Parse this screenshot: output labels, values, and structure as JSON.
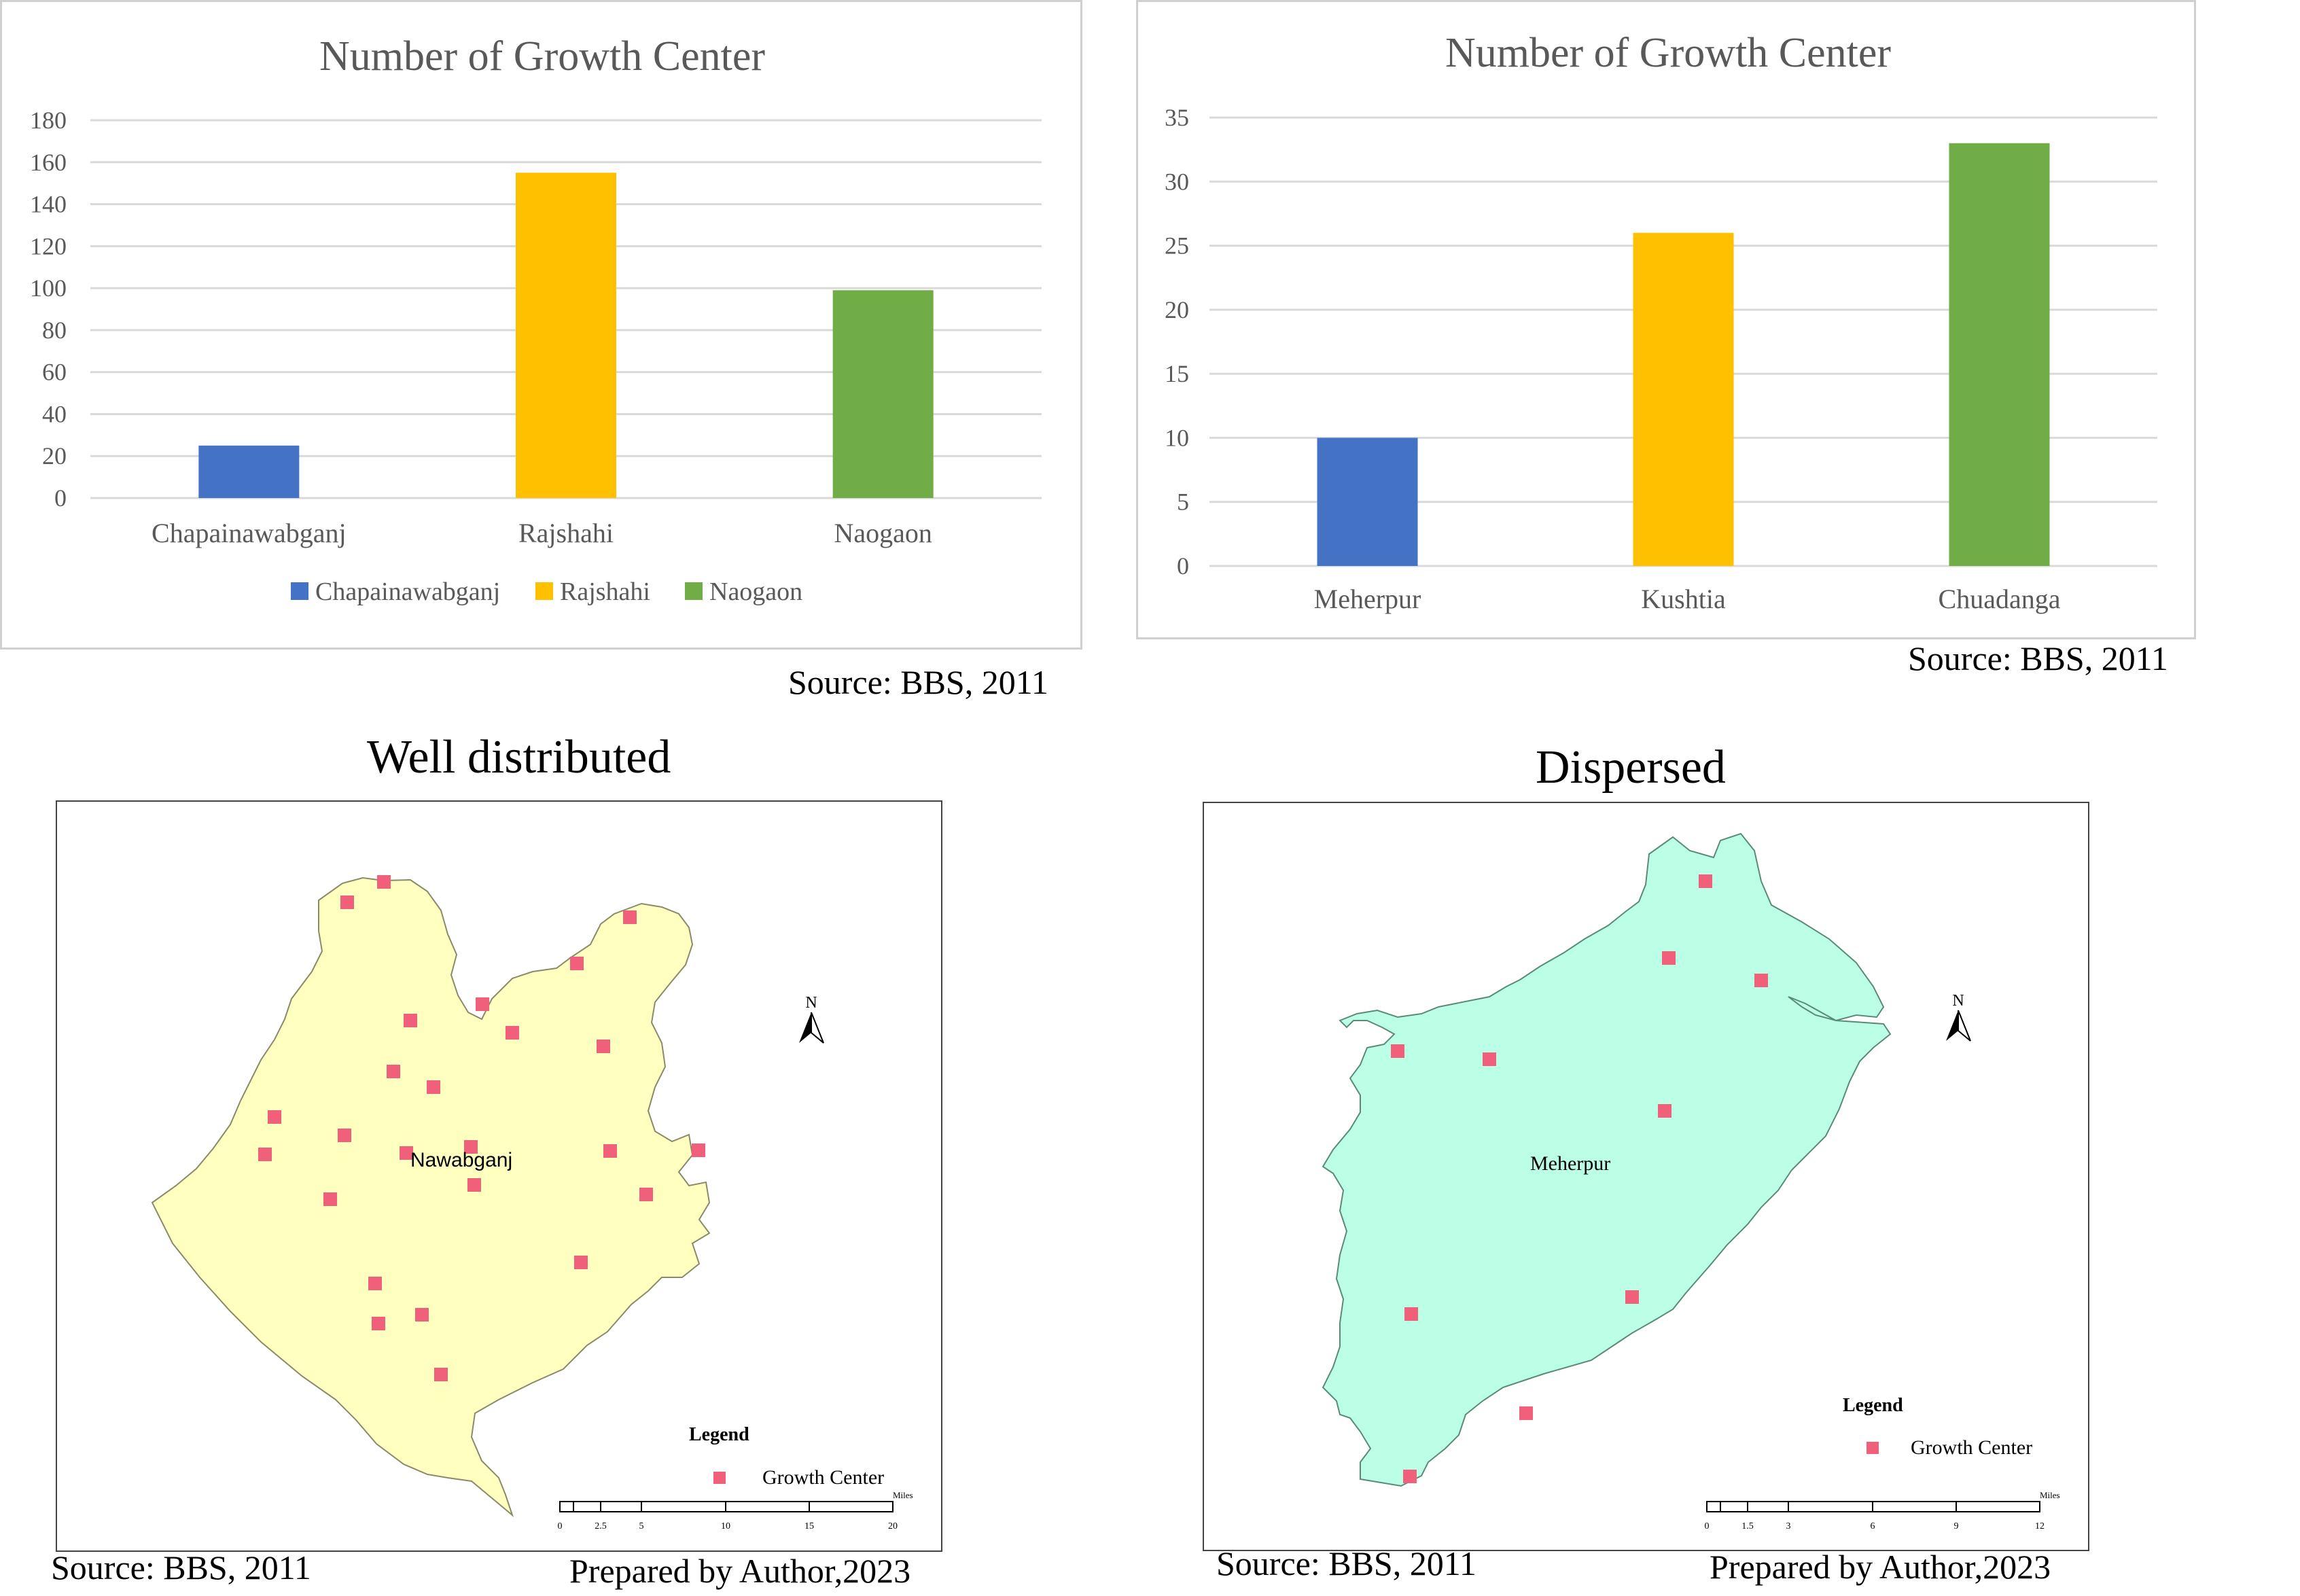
{
  "chart_data": [
    {
      "type": "bar",
      "title": "Number of Growth  Center",
      "categories": [
        "Chapainawabganj",
        "Rajshahi",
        "Naogaon"
      ],
      "values": [
        25,
        155,
        99
      ],
      "colors": [
        "#4472C4",
        "#FFC000",
        "#70AD47"
      ],
      "ylim": [
        0,
        180
      ],
      "yticks": [
        0,
        20,
        40,
        60,
        80,
        100,
        120,
        140,
        160,
        180
      ],
      "grid": true,
      "legend": [
        "Chapainawabganj",
        "Rajshahi",
        "Naogaon"
      ],
      "legend_position": "bottom",
      "xlabel": "",
      "ylabel": ""
    },
    {
      "type": "bar",
      "title": "Number of Growth  Center",
      "categories": [
        "Meherpur",
        "Kushtia",
        "Chuadanga"
      ],
      "values": [
        10,
        26,
        33
      ],
      "colors": [
        "#4472C4",
        "#FFC000",
        "#70AD47"
      ],
      "ylim": [
        0,
        35
      ],
      "yticks": [
        0,
        5,
        10,
        15,
        20,
        25,
        30,
        35
      ],
      "grid": true,
      "xlabel": "",
      "ylabel": ""
    }
  ],
  "sources": {
    "chart1": "Source: BBS, 2011",
    "chart2": "Source: BBS, 2011"
  },
  "map_left": {
    "title": "Well distributed",
    "place_label": "Nawabganj",
    "fill_color": "#FFFFC0",
    "north": "N",
    "legend_title": "Legend",
    "legend_item": "Growth Center",
    "scale_ticks": [
      "0",
      "2.5",
      "5",
      "10",
      "15",
      "20"
    ],
    "scale_unit": "Miles",
    "source": "Source: BBS, 2011",
    "prepared": "Prepared by Author,2023"
  },
  "map_right": {
    "title": "Dispersed",
    "place_label": "Meherpur",
    "fill_color": "#BBFFE6",
    "north": "N",
    "legend_title": "Legend",
    "legend_item": "Growth Center",
    "scale_ticks": [
      "0",
      "1.5",
      "3",
      "6",
      "9",
      "12"
    ],
    "scale_unit": "Miles",
    "source": "Source: BBS, 2011",
    "prepared": "Prepared by Author,2023"
  },
  "marker_color": "#F0607A"
}
